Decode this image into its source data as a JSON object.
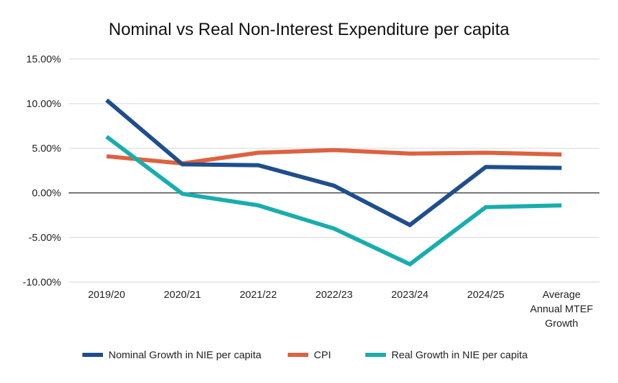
{
  "chart_data": {
    "type": "line",
    "title": "Nominal vs Real Non-Interest Expenditure per capita",
    "xlabel": "",
    "ylabel": "",
    "ylim": [
      -10,
      15
    ],
    "yticks": [
      15,
      10,
      5,
      0,
      -5,
      -10
    ],
    "ytick_labels": [
      "15.00%",
      "10.00%",
      "5.00%",
      "0.00%",
      "-5.00%",
      "-10.00%"
    ],
    "grid": true,
    "legend_position": "bottom",
    "categories": [
      [
        "2019/20"
      ],
      [
        "2020/21"
      ],
      [
        "2021/22"
      ],
      [
        "2022/23"
      ],
      [
        "2023/24"
      ],
      [
        "2024/25"
      ],
      [
        "Average",
        "Annual MTEF",
        "Growth"
      ]
    ],
    "series": [
      {
        "name": "Nominal Growth in NIE per capita",
        "color": "#1f4e8c",
        "values": [
          10.4,
          3.2,
          3.1,
          0.8,
          -3.6,
          2.9,
          2.8
        ]
      },
      {
        "name": "CPI",
        "color": "#dd6240",
        "values": [
          4.1,
          3.3,
          4.5,
          4.8,
          4.4,
          4.5,
          4.3
        ]
      },
      {
        "name": "Real Growth in NIE per capita",
        "color": "#19adad",
        "values": [
          6.3,
          -0.1,
          -1.4,
          -4.0,
          -8.0,
          -1.6,
          -1.4
        ]
      }
    ]
  }
}
